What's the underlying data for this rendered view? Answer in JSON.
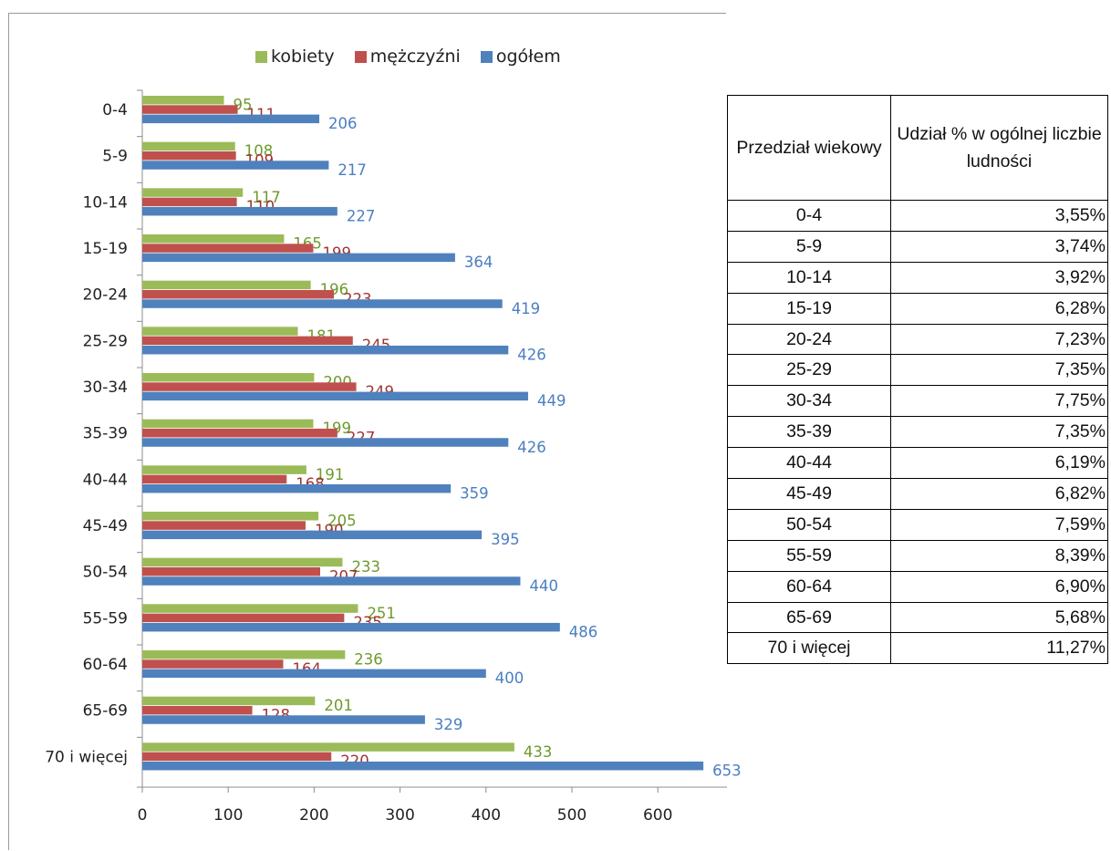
{
  "colors": {
    "kobiety": "#9BBB59",
    "mezczyzni": "#C0504D",
    "ogolem": "#4F81BD"
  },
  "chart_data": {
    "type": "bar",
    "orientation": "horizontal",
    "categories": [
      "0-4",
      "5-9",
      "10-14",
      "15-19",
      "20-24",
      "25-29",
      "30-34",
      "35-39",
      "40-44",
      "45-49",
      "50-54",
      "55-59",
      "60-64",
      "65-69",
      "70 i więcej"
    ],
    "series": [
      {
        "name": "kobiety",
        "color": "#9BBB59",
        "values": [
          95,
          108,
          117,
          165,
          196,
          181,
          200,
          199,
          191,
          205,
          233,
          251,
          236,
          201,
          433
        ]
      },
      {
        "name": "mężczyźni",
        "color": "#C0504D",
        "values": [
          111,
          109,
          110,
          199,
          223,
          245,
          249,
          227,
          168,
          190,
          207,
          235,
          164,
          128,
          220
        ]
      },
      {
        "name": "ogółem",
        "color": "#4F81BD",
        "values": [
          206,
          217,
          227,
          364,
          419,
          426,
          449,
          426,
          359,
          395,
          440,
          486,
          400,
          329,
          653
        ]
      }
    ],
    "xlim": [
      0,
      650
    ],
    "xticks": [
      0,
      100,
      200,
      300,
      400,
      500,
      600
    ],
    "legend_position": "top",
    "grid": false
  },
  "table": {
    "header_age": "Przedział wiekowy",
    "header_share": "Udział % w ogólnej liczbie ludności",
    "rows": [
      {
        "age": "0-4",
        "share": "3,55%"
      },
      {
        "age": "5-9",
        "share": "3,74%"
      },
      {
        "age": "10-14",
        "share": "3,92%"
      },
      {
        "age": "15-19",
        "share": "6,28%"
      },
      {
        "age": "20-24",
        "share": "7,23%"
      },
      {
        "age": "25-29",
        "share": "7,35%"
      },
      {
        "age": "30-34",
        "share": "7,75%"
      },
      {
        "age": "35-39",
        "share": "7,35%"
      },
      {
        "age": "40-44",
        "share": "6,19%"
      },
      {
        "age": "45-49",
        "share": "6,82%"
      },
      {
        "age": "50-54",
        "share": "7,59%"
      },
      {
        "age": "55-59",
        "share": "8,39%"
      },
      {
        "age": "60-64",
        "share": "6,90%"
      },
      {
        "age": "65-69",
        "share": "5,68%"
      },
      {
        "age": "70 i więcej",
        "share": "11,27%"
      }
    ]
  }
}
